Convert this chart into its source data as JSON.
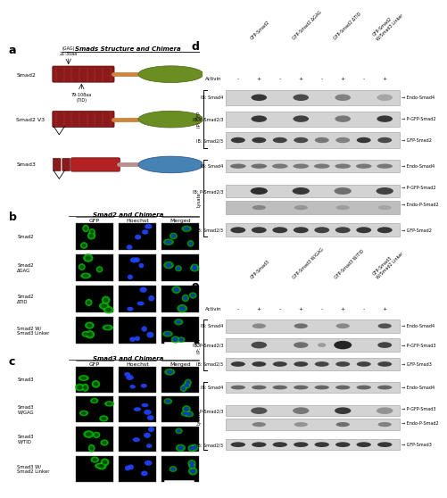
{
  "title": "Smads Structure and Chimera",
  "panel_b_title": "Smad2 and Chimera",
  "panel_c_title": "Smad3 and Chimera",
  "cols_b": [
    "GFP",
    "Hoechst",
    "Merged"
  ],
  "rows_b": [
    "Smad2",
    "Smad2\nΔGAG",
    "Smad2\nΔTID",
    "Smad2 W/\nSmad3 Linker"
  ],
  "cols_c": [
    "GFP",
    "Hoechst",
    "Merged"
  ],
  "rows_c": [
    "Smad3",
    "Smad3\nW/GAG",
    "Smad3\nW/TID",
    "Smad3 W/\nSmad2 Linker"
  ],
  "d_cols": [
    "GFP-Smad2",
    "GFP-Smad2 ΔGAG",
    "GFP-Smad2 ΔTID",
    "GFP-Smad2\nW/Smad3 Linker"
  ],
  "d_activin": [
    "-",
    "+",
    "-",
    "+",
    "-",
    "+",
    "-",
    "+"
  ],
  "d_ip_rows": [
    "IB: Smad4",
    "IB: P-Smad2/3",
    "IB: Smad2/3"
  ],
  "d_ip_labels": [
    "Endo-Smad4",
    "P-GFP-Smad2",
    "GFP-Smad2"
  ],
  "d_lys_rows": [
    "IB: Smad4",
    "IB: P-Smad2/3",
    "IB: Smad2/3"
  ],
  "d_lys_labels": [
    "Endo-Smad4",
    "P-GFP-Smad2",
    "Endo-P-Smad2",
    "GFP-Smad2"
  ],
  "e_cols": [
    "GFP-Smad3",
    "GFP-Smad3 W/GAG",
    "GFP-Smad3 W/TID",
    "GFP-Smad3\nW/Smad2 Linker"
  ],
  "e_activin": [
    "-",
    "+",
    "-",
    "+",
    "-",
    "+",
    "-",
    "+"
  ],
  "e_ip_rows": [
    "IB: Smad4",
    "IB: P-Smad2/3",
    "IB: Smad2/3"
  ],
  "e_ip_labels": [
    "Endo-Smad4",
    "P-GFP-Smad3",
    "GFP-Smad3"
  ],
  "e_lys_rows": [
    "IB: Smad4",
    "IB: P-Smad2/3",
    "IB: Smad2/3"
  ],
  "e_lys_labels": [
    "Endo-Smad4",
    "P-GFP-Smad3",
    "Endo-P-Smad2",
    "GFP-Smad3"
  ],
  "red_dark": "#8B1A1A",
  "red_mid": "#B22222",
  "orange_linker": "#CD853F",
  "pink_linker": "#BC8F8F",
  "green_mh2": "#6B8E23",
  "teal_mh2": "#4682B4",
  "blot_bg_light": "#D3D3D3",
  "blot_bg_med": "#C0C0C0",
  "band_dark": "#1C1C1C",
  "band_mid": "#2F2F2F"
}
